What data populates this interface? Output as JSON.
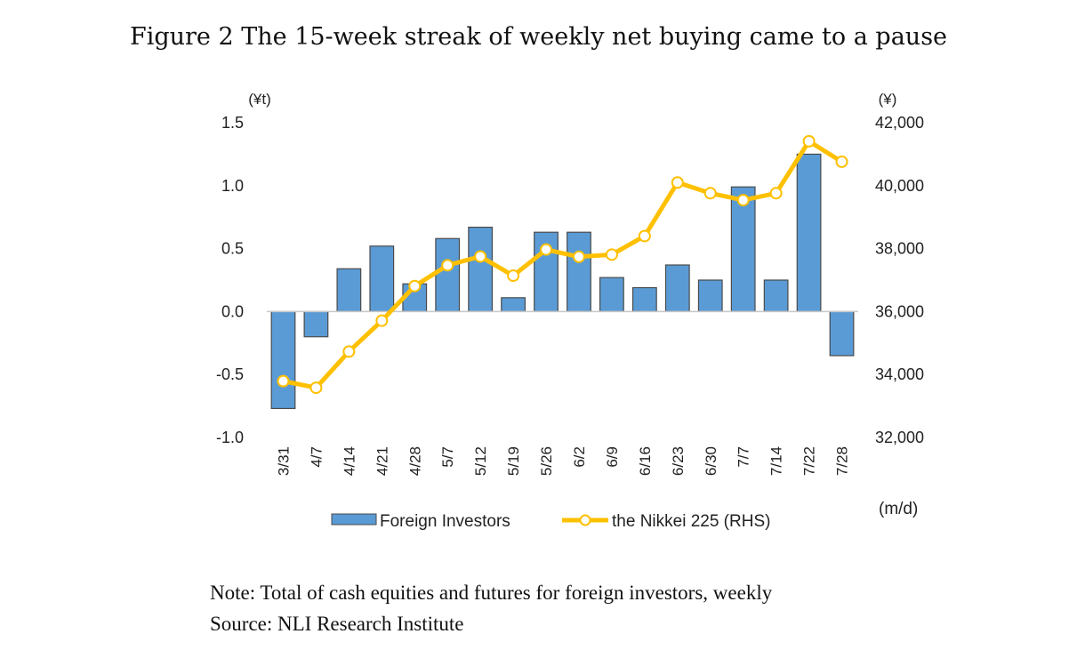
{
  "title": "Figure 2 The 15-week streak of weekly net buying came to a pause",
  "note": "Note: Total of cash equities and futures for foreign investors, weekly",
  "source": "Source: NLI Research Institute",
  "chart_data": {
    "type": "bar+line",
    "categories": [
      "3/31",
      "4/7",
      "4/14",
      "4/21",
      "4/28",
      "5/7",
      "5/12",
      "5/19",
      "5/26",
      "6/2",
      "6/9",
      "6/16",
      "6/23",
      "6/30",
      "7/7",
      "7/14",
      "7/22",
      "7/28"
    ],
    "xlabel": "(m/d)",
    "ylabel_left": "(¥t)",
    "ylabel_right": "(¥)",
    "ylim_left": [
      -1.0,
      1.5
    ],
    "ylim_right": [
      32000,
      42000
    ],
    "yticks_left": [
      "1.5",
      "1.0",
      "0.5",
      "0.0",
      "-0.5",
      "-1.0"
    ],
    "yticks_right": [
      "42,000",
      "40,000",
      "38,000",
      "36,000",
      "34,000",
      "32,000"
    ],
    "grid": false,
    "legend_position": "bottom",
    "series": [
      {
        "name": "Foreign Investors",
        "type": "bar",
        "axis": "left",
        "color": "#5B9BD5",
        "values": [
          -0.77,
          -0.2,
          0.34,
          0.52,
          0.22,
          0.58,
          0.67,
          0.11,
          0.63,
          0.63,
          0.27,
          0.19,
          0.37,
          0.25,
          0.99,
          0.25,
          1.25,
          -0.35
        ]
      },
      {
        "name": "the Nikkei 225 (RHS)",
        "type": "line",
        "axis": "right",
        "color": "#FFC000",
        "values": [
          33790,
          33580,
          34730,
          35710,
          36810,
          37470,
          37750,
          37140,
          37970,
          37740,
          37810,
          38400,
          40100,
          39760,
          39540,
          39760,
          41410,
          40760
        ]
      }
    ]
  }
}
